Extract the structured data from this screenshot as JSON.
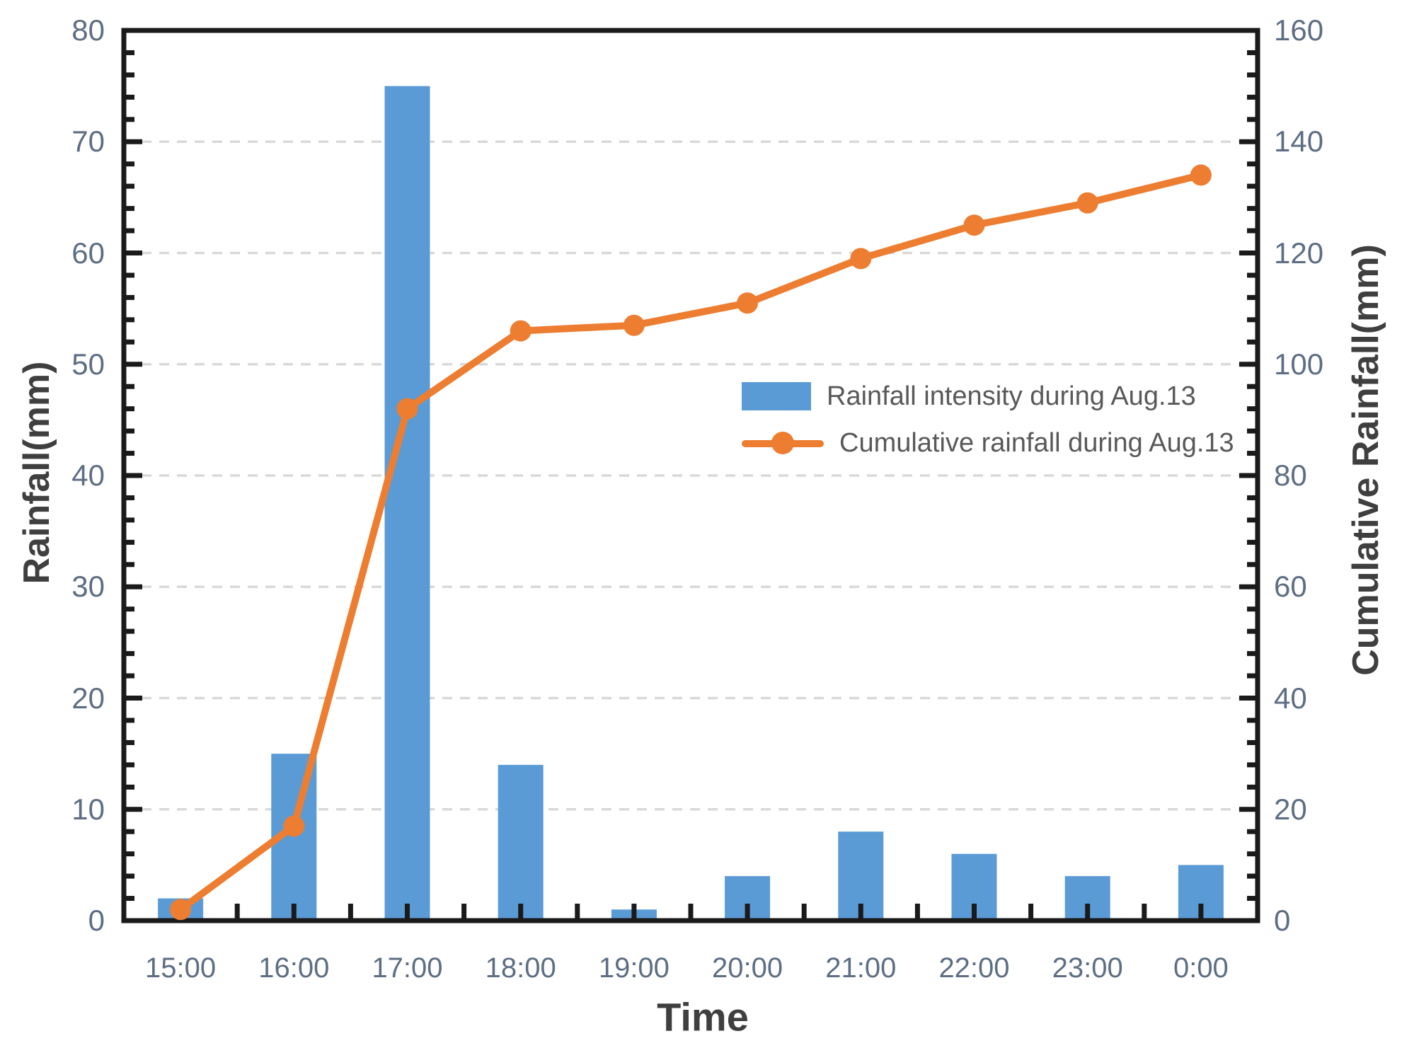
{
  "chart_data": {
    "type": "combo-bar-line",
    "categories": [
      "15:00",
      "16:00",
      "17:00",
      "18:00",
      "19:00",
      "20:00",
      "21:00",
      "22:00",
      "23:00",
      "0:00"
    ],
    "series": [
      {
        "name": "Rainfall intensity during Aug.13",
        "type": "bar",
        "axis": "left",
        "color": "#5B9BD5",
        "values": [
          2,
          15,
          75,
          14,
          1,
          4,
          8,
          6,
          4,
          5
        ]
      },
      {
        "name": "Cumulative rainfall during Aug.13",
        "type": "line",
        "axis": "right",
        "color": "#ED7D31",
        "values": [
          2,
          17,
          92,
          106,
          107,
          111,
          119,
          125,
          129,
          134
        ]
      }
    ],
    "left_axis": {
      "label": "Rainfall(mm)",
      "min": 0,
      "max": 80,
      "major_step": 10,
      "minor_step": 2,
      "ticks": [
        0,
        10,
        20,
        30,
        40,
        50,
        60,
        70,
        80
      ]
    },
    "right_axis": {
      "label": "Cumulative Rainfall(mm)",
      "min": 0,
      "max": 160,
      "major_step": 20,
      "minor_step": 4,
      "ticks": [
        0,
        20,
        40,
        60,
        80,
        100,
        120,
        140,
        160
      ]
    },
    "x_axis": {
      "label": "Time"
    },
    "grid": {
      "horizontal_majors": true,
      "style": "dashed",
      "color": "#D9D9D9"
    },
    "legend_position": "inside-upper-right"
  },
  "colors": {
    "bar": "#5B9BD5",
    "line": "#ED7D31",
    "axis": "#1a1a1a",
    "gridline": "#D9D9D9",
    "tick_label": "#5d6e84",
    "axis_title": "#3f3f3f",
    "legend_text": "#595959",
    "background": "#ffffff"
  }
}
